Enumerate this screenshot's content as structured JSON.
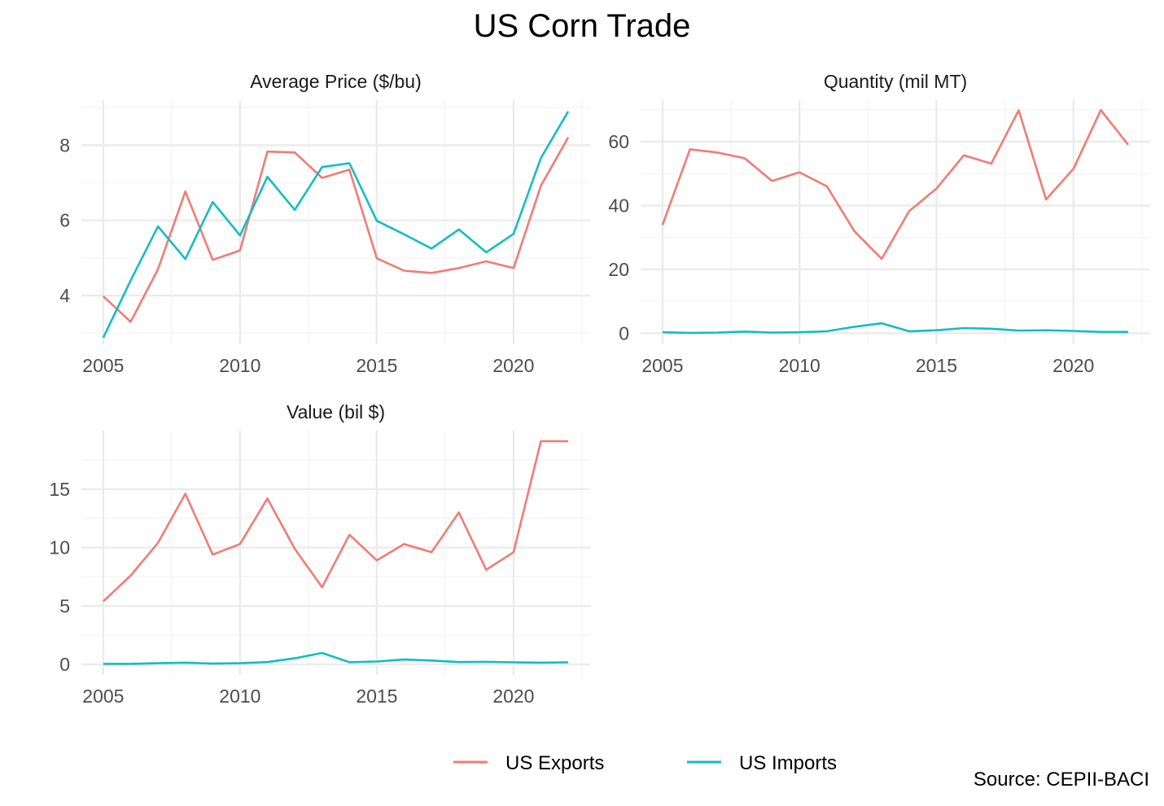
{
  "title": "US Corn Trade",
  "source": "Source: CEPII-BACI",
  "colors": {
    "exports": "#F07C74",
    "imports": "#13BDC1",
    "grid_major": "#EBEBEB",
    "grid_minor": "#F3F3F3",
    "tick_text": "#4D4D4D",
    "strip_text": "#1A1A1A"
  },
  "legend": {
    "position": "bottom",
    "items": [
      {
        "label": "US Exports",
        "color": "#F07C74"
      },
      {
        "label": "US Imports",
        "color": "#13BDC1"
      }
    ]
  },
  "chart_data": [
    {
      "type": "line",
      "title": "Average Price ($/bu)",
      "x": [
        2005,
        2006,
        2007,
        2008,
        2009,
        2010,
        2011,
        2012,
        2013,
        2014,
        2015,
        2016,
        2017,
        2018,
        2019,
        2020,
        2021,
        2022
      ],
      "xlim": [
        2004.2,
        2022.8
      ],
      "ylim": [
        2.7,
        9.2
      ],
      "x_ticks": [
        "2005",
        "2010",
        "2015",
        "2020"
      ],
      "y_ticks": [
        "4",
        "6",
        "8"
      ],
      "series": [
        {
          "name": "US Exports",
          "values": [
            3.98,
            3.3,
            4.7,
            6.77,
            4.95,
            5.2,
            7.83,
            7.81,
            7.13,
            7.35,
            4.99,
            4.66,
            4.6,
            4.73,
            4.91,
            4.73,
            6.92,
            8.21
          ]
        },
        {
          "name": "US Imports",
          "values": [
            2.88,
            4.4,
            5.84,
            4.97,
            6.49,
            5.6,
            7.16,
            6.28,
            7.42,
            7.52,
            5.99,
            5.63,
            5.25,
            5.76,
            5.15,
            5.64,
            7.66,
            8.9
          ]
        }
      ]
    },
    {
      "type": "line",
      "title": "Quantity (mil MT)",
      "x": [
        2005,
        2006,
        2007,
        2008,
        2009,
        2010,
        2011,
        2012,
        2013,
        2014,
        2015,
        2016,
        2017,
        2018,
        2019,
        2020,
        2021,
        2022
      ],
      "xlim": [
        2004.2,
        2022.8
      ],
      "ylim": [
        -3.5,
        73
      ],
      "x_ticks": [
        "2005",
        "2010",
        "2015",
        "2020"
      ],
      "y_ticks": [
        "0",
        "20",
        "40",
        "60"
      ],
      "series": [
        {
          "name": "US Exports",
          "values": [
            33.9,
            57.6,
            56.6,
            54.8,
            47.7,
            50.4,
            46.0,
            32.0,
            23.3,
            38.2,
            45.3,
            55.7,
            53.1,
            69.8,
            41.9,
            51.5,
            69.9,
            59.0
          ]
        },
        {
          "name": "US Imports",
          "values": [
            0.3,
            0.1,
            0.2,
            0.5,
            0.2,
            0.3,
            0.6,
            2.0,
            3.1,
            0.6,
            0.9,
            1.6,
            1.4,
            0.8,
            0.9,
            0.7,
            0.4,
            0.4
          ]
        }
      ]
    },
    {
      "type": "line",
      "title": "Value (bil $)",
      "x": [
        2005,
        2006,
        2007,
        2008,
        2009,
        2010,
        2011,
        2012,
        2013,
        2014,
        2015,
        2016,
        2017,
        2018,
        2019,
        2020,
        2021,
        2022
      ],
      "xlim": [
        2004.2,
        2022.8
      ],
      "ylim": [
        -0.9,
        20
      ],
      "x_ticks": [
        "2005",
        "2010",
        "2015",
        "2020"
      ],
      "y_ticks": [
        "0",
        "5",
        "10",
        "15"
      ],
      "series": [
        {
          "name": "US Exports",
          "values": [
            5.4,
            7.6,
            10.4,
            14.6,
            9.4,
            10.3,
            14.2,
            9.9,
            6.6,
            11.1,
            8.9,
            10.3,
            9.6,
            13.0,
            8.1,
            9.6,
            19.1,
            19.1
          ]
        },
        {
          "name": "US Imports",
          "values": [
            0.05,
            0.05,
            0.1,
            0.15,
            0.07,
            0.1,
            0.2,
            0.52,
            0.98,
            0.19,
            0.25,
            0.42,
            0.33,
            0.2,
            0.22,
            0.18,
            0.15,
            0.18
          ]
        }
      ]
    }
  ]
}
